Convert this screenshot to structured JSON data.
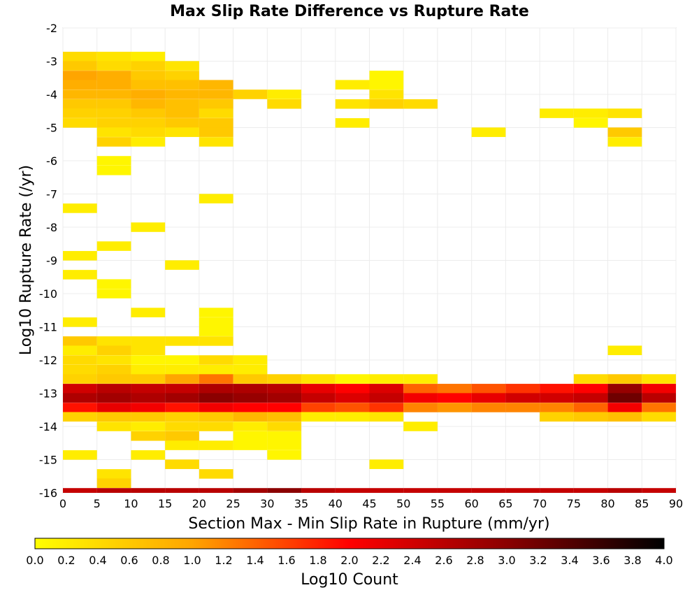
{
  "chart_data": {
    "type": "heatmap",
    "title": "Max Slip Rate Difference vs Rupture Rate",
    "xlabel": "Section Max - Min Slip Rate in Rupture (mm/yr)",
    "ylabel": "Log10 Rupture Rate (/yr)",
    "xlim": [
      0,
      90
    ],
    "ylim": [
      -16,
      -2
    ],
    "x_ticks": [
      0,
      5,
      10,
      15,
      20,
      25,
      30,
      35,
      40,
      45,
      50,
      55,
      60,
      65,
      70,
      75,
      80,
      85,
      90
    ],
    "y_ticks": [
      -2,
      -3,
      -4,
      -5,
      -6,
      -7,
      -8,
      -9,
      -10,
      -11,
      -12,
      -13,
      -14,
      -15,
      -16
    ],
    "x_tick_labels": [
      "0",
      "5",
      "10",
      "15",
      "20",
      "25",
      "30",
      "35",
      "40",
      "45",
      "50",
      "55",
      "60",
      "65",
      "70",
      "75",
      "80",
      "85",
      "90"
    ],
    "y_tick_labels": [
      "-2",
      "-3",
      "-4",
      "-5",
      "-6",
      "-7",
      "-8",
      "-9",
      "-10",
      "-11",
      "-12",
      "-13",
      "-14",
      "-15",
      "-16"
    ],
    "bin_width_x": 5,
    "bin_height_y": 0.2857,
    "grid": true,
    "colorbar": {
      "label": "Log10 Count",
      "min": 0.0,
      "max": 4.0,
      "orientation": "horizontal",
      "placement": "bottom",
      "tick_labels": [
        "0.0",
        "0.2",
        "0.4",
        "0.6",
        "0.8",
        "1.0",
        "1.2",
        "1.4",
        "1.6",
        "1.8",
        "2.0",
        "2.2",
        "2.4",
        "2.6",
        "2.8",
        "3.0",
        "3.2",
        "3.4",
        "3.6",
        "3.8",
        "4.0"
      ],
      "colors": [
        "#ffff00",
        "#ffa500",
        "#ff0000",
        "#8b0000",
        "#000000"
      ]
    },
    "cells": [
      [
        0,
        -2.86,
        0.4
      ],
      [
        5,
        -2.86,
        0.3
      ],
      [
        10,
        -2.86,
        0.2
      ],
      [
        0,
        -3.14,
        0.6
      ],
      [
        5,
        -3.14,
        0.4
      ],
      [
        10,
        -3.14,
        0.5
      ],
      [
        15,
        -3.14,
        0.3
      ],
      [
        0,
        -3.43,
        1.0
      ],
      [
        5,
        -3.43,
        0.9
      ],
      [
        10,
        -3.43,
        0.6
      ],
      [
        15,
        -3.43,
        0.5
      ],
      [
        45,
        -3.43,
        0.1
      ],
      [
        0,
        -3.71,
        0.9
      ],
      [
        5,
        -3.71,
        0.9
      ],
      [
        10,
        -3.71,
        0.7
      ],
      [
        15,
        -3.71,
        0.7
      ],
      [
        20,
        -3.71,
        0.8
      ],
      [
        40,
        -3.71,
        0.2
      ],
      [
        45,
        -3.71,
        0.1
      ],
      [
        0,
        -4.0,
        0.8
      ],
      [
        5,
        -4.0,
        0.8
      ],
      [
        10,
        -4.0,
        0.9
      ],
      [
        15,
        -4.0,
        0.8
      ],
      [
        20,
        -4.0,
        0.8
      ],
      [
        25,
        -4.0,
        0.5
      ],
      [
        30,
        -4.0,
        0.2
      ],
      [
        45,
        -4.0,
        0.3
      ],
      [
        0,
        -4.29,
        0.6
      ],
      [
        5,
        -4.29,
        0.6
      ],
      [
        10,
        -4.29,
        0.8
      ],
      [
        15,
        -4.29,
        0.7
      ],
      [
        20,
        -4.29,
        0.6
      ],
      [
        30,
        -4.29,
        0.4
      ],
      [
        40,
        -4.29,
        0.3
      ],
      [
        45,
        -4.29,
        0.5
      ],
      [
        50,
        -4.29,
        0.4
      ],
      [
        0,
        -4.57,
        0.5
      ],
      [
        5,
        -4.57,
        0.5
      ],
      [
        10,
        -4.57,
        0.6
      ],
      [
        15,
        -4.57,
        0.7
      ],
      [
        20,
        -4.57,
        0.4
      ],
      [
        70,
        -4.57,
        0.2
      ],
      [
        75,
        -4.57,
        0.2
      ],
      [
        80,
        -4.57,
        0.3
      ],
      [
        0,
        -4.86,
        0.4
      ],
      [
        5,
        -4.86,
        0.5
      ],
      [
        10,
        -4.86,
        0.5
      ],
      [
        15,
        -4.86,
        0.6
      ],
      [
        20,
        -4.86,
        0.6
      ],
      [
        40,
        -4.86,
        0.2
      ],
      [
        75,
        -4.86,
        0.1
      ],
      [
        5,
        -5.14,
        0.3
      ],
      [
        10,
        -5.14,
        0.4
      ],
      [
        15,
        -5.14,
        0.3
      ],
      [
        20,
        -5.14,
        0.6
      ],
      [
        60,
        -5.14,
        0.2
      ],
      [
        80,
        -5.14,
        0.6
      ],
      [
        5,
        -5.43,
        0.5
      ],
      [
        10,
        -5.43,
        0.2
      ],
      [
        20,
        -5.43,
        0.3
      ],
      [
        80,
        -5.43,
        0.2
      ],
      [
        5,
        -6.0,
        0.1
      ],
      [
        5,
        -6.29,
        0.1
      ],
      [
        20,
        -7.14,
        0.2
      ],
      [
        0,
        -7.43,
        0.2
      ],
      [
        10,
        -8.0,
        0.2
      ],
      [
        5,
        -8.57,
        0.2
      ],
      [
        0,
        -8.86,
        0.2
      ],
      [
        15,
        -9.14,
        0.2
      ],
      [
        0,
        -9.43,
        0.2
      ],
      [
        5,
        -9.71,
        0.1
      ],
      [
        5,
        -10.0,
        0.1
      ],
      [
        10,
        -10.57,
        0.2
      ],
      [
        20,
        -10.57,
        0.1
      ],
      [
        20,
        -10.86,
        0.1
      ],
      [
        0,
        -10.86,
        0.2
      ],
      [
        20,
        -11.14,
        0.1
      ],
      [
        0,
        -11.43,
        0.6
      ],
      [
        5,
        -11.43,
        0.3
      ],
      [
        10,
        -11.43,
        0.3
      ],
      [
        15,
        -11.43,
        0.3
      ],
      [
        20,
        -11.43,
        0.3
      ],
      [
        0,
        -11.71,
        0.2
      ],
      [
        5,
        -11.71,
        0.5
      ],
      [
        10,
        -11.71,
        0.3
      ],
      [
        80,
        -11.71,
        0.2
      ],
      [
        0,
        -12.0,
        0.4
      ],
      [
        5,
        -12.0,
        0.3
      ],
      [
        10,
        -12.0,
        0.1
      ],
      [
        15,
        -12.0,
        0.1
      ],
      [
        20,
        -12.0,
        0.4
      ],
      [
        25,
        -12.0,
        0.2
      ],
      [
        0,
        -12.29,
        0.4
      ],
      [
        5,
        -12.29,
        0.5
      ],
      [
        10,
        -12.29,
        0.2
      ],
      [
        15,
        -12.29,
        0.2
      ],
      [
        20,
        -12.29,
        0.2
      ],
      [
        25,
        -12.29,
        0.2
      ],
      [
        0,
        -12.57,
        0.5
      ],
      [
        5,
        -12.57,
        0.6
      ],
      [
        10,
        -12.57,
        0.6
      ],
      [
        15,
        -12.57,
        1.0
      ],
      [
        20,
        -12.57,
        1.3
      ],
      [
        25,
        -12.57,
        0.6
      ],
      [
        30,
        -12.57,
        0.5
      ],
      [
        35,
        -12.57,
        0.3
      ],
      [
        40,
        -12.57,
        0.1
      ],
      [
        45,
        -12.57,
        0.2
      ],
      [
        50,
        -12.57,
        0.2
      ],
      [
        75,
        -12.57,
        0.4
      ],
      [
        80,
        -12.57,
        0.6
      ],
      [
        85,
        -12.57,
        0.3
      ],
      [
        0,
        -12.86,
        2.4
      ],
      [
        5,
        -12.86,
        2.6
      ],
      [
        10,
        -12.86,
        2.5
      ],
      [
        15,
        -12.86,
        2.5
      ],
      [
        20,
        -12.86,
        2.7
      ],
      [
        25,
        -12.86,
        2.7
      ],
      [
        30,
        -12.86,
        2.6
      ],
      [
        35,
        -12.86,
        2.2
      ],
      [
        40,
        -12.86,
        2.0
      ],
      [
        45,
        -12.86,
        2.3
      ],
      [
        50,
        -12.86,
        1.4
      ],
      [
        55,
        -12.86,
        1.3
      ],
      [
        60,
        -12.86,
        1.5
      ],
      [
        65,
        -12.86,
        1.7
      ],
      [
        70,
        -12.86,
        1.9
      ],
      [
        75,
        -12.86,
        2.0
      ],
      [
        80,
        -12.86,
        2.9
      ],
      [
        85,
        -12.86,
        2.1
      ],
      [
        0,
        -13.14,
        2.7
      ],
      [
        5,
        -13.14,
        2.8
      ],
      [
        10,
        -13.14,
        2.7
      ],
      [
        15,
        -13.14,
        2.8
      ],
      [
        20,
        -13.14,
        3.0
      ],
      [
        25,
        -13.14,
        2.9
      ],
      [
        30,
        -13.14,
        2.8
      ],
      [
        35,
        -13.14,
        2.5
      ],
      [
        40,
        -13.14,
        2.3
      ],
      [
        45,
        -13.14,
        2.5
      ],
      [
        50,
        -13.14,
        2.1
      ],
      [
        55,
        -13.14,
        2.0
      ],
      [
        60,
        -13.14,
        2.2
      ],
      [
        65,
        -13.14,
        2.4
      ],
      [
        70,
        -13.14,
        2.4
      ],
      [
        75,
        -13.14,
        2.5
      ],
      [
        80,
        -13.14,
        3.2
      ],
      [
        85,
        -13.14,
        2.6
      ],
      [
        0,
        -13.43,
        1.9
      ],
      [
        5,
        -13.43,
        2.2
      ],
      [
        10,
        -13.43,
        2.1
      ],
      [
        15,
        -13.43,
        1.9
      ],
      [
        20,
        -13.43,
        2.1
      ],
      [
        25,
        -13.43,
        2.0
      ],
      [
        30,
        -13.43,
        2.0
      ],
      [
        35,
        -13.43,
        1.6
      ],
      [
        40,
        -13.43,
        1.5
      ],
      [
        45,
        -13.43,
        1.7
      ],
      [
        50,
        -13.43,
        1.2
      ],
      [
        55,
        -13.43,
        1.1
      ],
      [
        60,
        -13.43,
        1.2
      ],
      [
        65,
        -13.43,
        1.2
      ],
      [
        70,
        -13.43,
        1.2
      ],
      [
        75,
        -13.43,
        1.4
      ],
      [
        80,
        -13.43,
        2.1
      ],
      [
        85,
        -13.43,
        1.3
      ],
      [
        0,
        -13.71,
        0.5
      ],
      [
        5,
        -13.71,
        0.6
      ],
      [
        10,
        -13.71,
        0.6
      ],
      [
        15,
        -13.71,
        0.5
      ],
      [
        20,
        -13.71,
        0.6
      ],
      [
        25,
        -13.71,
        0.8
      ],
      [
        30,
        -13.71,
        0.7
      ],
      [
        35,
        -13.71,
        0.2
      ],
      [
        40,
        -13.71,
        0.2
      ],
      [
        45,
        -13.71,
        0.3
      ],
      [
        70,
        -13.71,
        0.5
      ],
      [
        75,
        -13.71,
        0.6
      ],
      [
        80,
        -13.71,
        0.7
      ],
      [
        85,
        -13.71,
        0.4
      ],
      [
        5,
        -14.0,
        0.3
      ],
      [
        10,
        -14.0,
        0.2
      ],
      [
        15,
        -14.0,
        0.4
      ],
      [
        20,
        -14.0,
        0.4
      ],
      [
        25,
        -14.0,
        0.2
      ],
      [
        30,
        -14.0,
        0.4
      ],
      [
        50,
        -14.0,
        0.2
      ],
      [
        10,
        -14.29,
        0.5
      ],
      [
        15,
        -14.29,
        0.6
      ],
      [
        25,
        -14.29,
        0.1
      ],
      [
        30,
        -14.29,
        0.1
      ],
      [
        15,
        -14.57,
        0.2
      ],
      [
        20,
        -14.57,
        0.2
      ],
      [
        25,
        -14.57,
        0.1
      ],
      [
        30,
        -14.57,
        0.1
      ],
      [
        0,
        -14.86,
        0.2
      ],
      [
        10,
        -14.86,
        0.2
      ],
      [
        30,
        -14.86,
        0.1
      ],
      [
        15,
        -15.14,
        0.4
      ],
      [
        45,
        -15.14,
        0.2
      ],
      [
        20,
        -15.43,
        0.4
      ],
      [
        5,
        -15.43,
        0.3
      ],
      [
        5,
        -15.71,
        0.5
      ],
      [
        0,
        -16.0,
        2.5
      ],
      [
        5,
        -16.0,
        2.6
      ],
      [
        10,
        -16.0,
        2.6
      ],
      [
        15,
        -16.0,
        2.6
      ],
      [
        20,
        -16.0,
        2.6
      ],
      [
        25,
        -16.0,
        2.8
      ],
      [
        30,
        -16.0,
        3.0
      ],
      [
        35,
        -16.0,
        2.6
      ],
      [
        40,
        -16.0,
        2.5
      ],
      [
        45,
        -16.0,
        2.5
      ],
      [
        50,
        -16.0,
        2.5
      ],
      [
        55,
        -16.0,
        2.5
      ],
      [
        60,
        -16.0,
        2.5
      ],
      [
        65,
        -16.0,
        2.5
      ],
      [
        70,
        -16.0,
        2.5
      ],
      [
        75,
        -16.0,
        2.5
      ],
      [
        80,
        -16.0,
        2.6
      ],
      [
        85,
        -16.0,
        2.5
      ]
    ]
  }
}
